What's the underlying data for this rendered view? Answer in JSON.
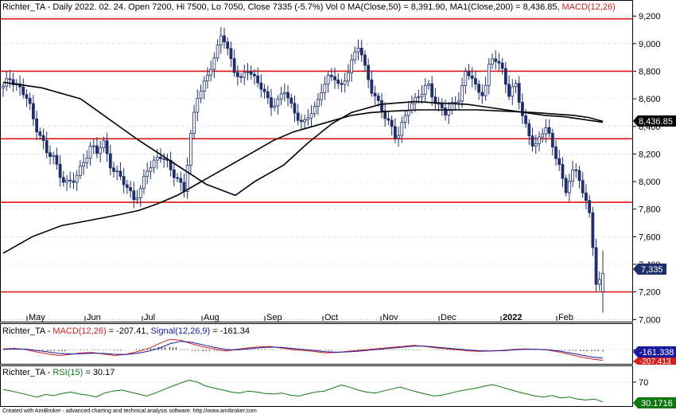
{
  "colors": {
    "background": "#ffffff",
    "up": "#ffffff",
    "down": "#1f2f6b",
    "resistance": "#e01010",
    "ma": "#000000",
    "macd": "#d21f1f",
    "signal": "#1a1aa0",
    "rsi": "#0e7a0e",
    "grid_dot": "#9a9ab0"
  },
  "header": {
    "main_prefix": "Richter_TA - Daily 2022. 02. 24. Open 7200, Hi 7500, Lo 7050, Close 7335 (-5.7%) Vol 0 MA(Close,50) = 8,391.90, MA1(Close,200) = 8,436.85,",
    "main_macd": "MACD(12,26)",
    "macd_prefix": "Richter_TA - ",
    "macd_label": "MACD(12,26)",
    "macd_value": " = -207.41, ",
    "signal_label": "Signal(12,26,9)",
    "signal_value": " = -161.34",
    "rsi_prefix": "Richter_TA - ",
    "rsi_label": "RSI(15)",
    "rsi_value": " = 30.17"
  },
  "footer": "Created with AmiBroker - advanced charting and technical analysis software. http://www.amibroker.com",
  "badges": {
    "ma200": "8,436.85",
    "close": "7,335",
    "signal": "-161.338",
    "macd": "-207.413",
    "rsi": "30.1716"
  },
  "chart_data": [
    {
      "type": "candlestick",
      "title": "Richter_TA - Daily",
      "x_labels": [
        "May",
        "Jun",
        "Jul",
        "Aug",
        "Sep",
        "Oct",
        "Nov",
        "Dec",
        "2022",
        "Feb"
      ],
      "y_ticks": [
        7000,
        7200,
        7400,
        7600,
        7800,
        8000,
        8200,
        8400,
        8600,
        8800,
        9000,
        9200
      ],
      "y_tick_labels": [
        "7,000",
        "7,200",
        "7,400",
        "7,600",
        "7,800",
        "8,000",
        "8,200",
        "8,400",
        "8,600",
        "8,800",
        "9,000",
        "9,200"
      ],
      "ylim": [
        6990,
        9230
      ],
      "last_bar": {
        "date": "2022. 02. 24.",
        "open": 7200,
        "high": 7500,
        "low": 7050,
        "close": 7335,
        "change_pct": -5.7
      },
      "horizontal_lines": [
        9180,
        8800,
        8310,
        7850,
        7200
      ],
      "close_path": [
        8680,
        8750,
        8720,
        8650,
        8590,
        8420,
        8340,
        8200,
        8180,
        8060,
        8000,
        7980,
        8060,
        8160,
        8260,
        8200,
        8300,
        8140,
        8060,
        8010,
        7950,
        7880,
        7930,
        8080,
        8140,
        8200,
        8140,
        8070,
        8020,
        7940,
        8310,
        8620,
        8700,
        8800,
        8900,
        9100,
        8950,
        8800,
        8720,
        8840,
        8760,
        8700,
        8620,
        8560,
        8580,
        8660,
        8560,
        8490,
        8400,
        8480,
        8540,
        8680,
        8740,
        8760,
        8680,
        8780,
        8880,
        9000,
        8820,
        8660,
        8560,
        8490,
        8420,
        8300,
        8420,
        8560,
        8600,
        8640,
        8700,
        8600,
        8540,
        8480,
        8560,
        8620,
        8780,
        8760,
        8640,
        8660,
        8880,
        8880,
        8800,
        8640,
        8700,
        8500,
        8360,
        8260,
        8300,
        8420,
        8240,
        8140,
        7880,
        8100,
        8060,
        7900,
        7720,
        7240,
        7335
      ],
      "series": [
        {
          "name": "MA(Close,50)",
          "value_last": 8391.9,
          "points": [
            [
              0,
              8720
            ],
            [
              8,
              8680
            ],
            [
              16,
              8600
            ],
            [
              22,
              8450
            ],
            [
              28,
              8300
            ],
            [
              35,
              8140
            ],
            [
              42,
              7980
            ],
            [
              48,
              7900
            ],
            [
              52,
              8000
            ],
            [
              58,
              8120
            ],
            [
              63,
              8280
            ],
            [
              68,
              8420
            ],
            [
              72,
              8500
            ],
            [
              78,
              8560
            ],
            [
              85,
              8580
            ],
            [
              90,
              8570
            ],
            [
              96,
              8560
            ],
            [
              100,
              8540
            ],
            [
              104,
              8520
            ],
            [
              108,
              8500
            ],
            [
              112,
              8480
            ],
            [
              116,
              8470
            ],
            [
              120,
              8450
            ],
            [
              124,
              8430
            ]
          ]
        },
        {
          "name": "MA1(Close,200)",
          "value_last": 8436.85,
          "points": [
            [
              0,
              7480
            ],
            [
              6,
              7600
            ],
            [
              12,
              7680
            ],
            [
              18,
              7720
            ],
            [
              24,
              7760
            ],
            [
              28,
              7790
            ],
            [
              32,
              7840
            ],
            [
              36,
              7900
            ],
            [
              40,
              7980
            ],
            [
              44,
              8060
            ],
            [
              48,
              8140
            ],
            [
              52,
              8220
            ],
            [
              56,
              8300
            ],
            [
              60,
              8360
            ],
            [
              64,
              8400
            ],
            [
              68,
              8440
            ],
            [
              72,
              8480
            ],
            [
              76,
              8500
            ],
            [
              80,
              8510
            ],
            [
              86,
              8520
            ],
            [
              92,
              8520
            ],
            [
              98,
              8520
            ],
            [
              104,
              8510
            ],
            [
              110,
              8500
            ],
            [
              114,
              8490
            ],
            [
              118,
              8480
            ],
            [
              121,
              8465
            ],
            [
              124,
              8437
            ]
          ]
        }
      ]
    },
    {
      "type": "line",
      "title": "MACD(12,26)",
      "y_ticks": [
        0
      ],
      "ylim": [
        -260,
        260
      ],
      "series": [
        {
          "name": "MACD(12,26)",
          "value_last": -207.41,
          "values": [
            20,
            30,
            10,
            -40,
            -80,
            -110,
            -90,
            -60,
            -50,
            -80,
            -110,
            -90,
            -40,
            20,
            120,
            210,
            190,
            120,
            60,
            20,
            -20,
            10,
            40,
            60,
            70,
            40,
            10,
            -10,
            -30,
            -60,
            -50,
            -30,
            -10,
            10,
            30,
            50,
            70,
            90,
            70,
            40,
            20,
            0,
            -20,
            -30,
            -20,
            -10,
            10,
            20,
            10,
            0,
            -40,
            -90,
            -140,
            -180,
            -207
          ]
        },
        {
          "name": "Signal(12,26,9)",
          "value_last": -161.34,
          "values": [
            10,
            20,
            15,
            -10,
            -40,
            -70,
            -80,
            -75,
            -65,
            -70,
            -85,
            -90,
            -70,
            -30,
            30,
            120,
            170,
            150,
            100,
            50,
            10,
            0,
            20,
            40,
            55,
            50,
            30,
            10,
            -10,
            -35,
            -45,
            -40,
            -25,
            -5,
            15,
            35,
            55,
            75,
            75,
            55,
            35,
            15,
            -5,
            -20,
            -20,
            -15,
            0,
            12,
            12,
            5,
            -20,
            -60,
            -100,
            -140,
            -161
          ]
        }
      ]
    },
    {
      "type": "line",
      "title": "RSI(15)",
      "y_ticks": [
        70
      ],
      "ylim": [
        25,
        78
      ],
      "series": [
        {
          "name": "RSI(15)",
          "value_last": 30.17,
          "values": [
            55,
            52,
            48,
            44,
            40,
            45,
            43,
            47,
            50,
            46,
            44,
            40,
            48,
            52,
            54,
            50,
            46,
            42,
            48,
            55,
            62,
            68,
            74,
            70,
            62,
            58,
            54,
            50,
            48,
            52,
            50,
            47,
            46,
            48,
            44,
            42,
            46,
            50,
            52,
            58,
            64,
            60,
            54,
            50,
            48,
            52,
            56,
            60,
            55,
            50,
            46,
            42,
            44,
            48,
            52,
            55,
            58,
            62,
            65,
            60,
            55,
            50,
            46,
            42,
            40,
            43,
            38,
            40,
            36,
            34,
            36,
            30.17
          ]
        }
      ]
    }
  ]
}
